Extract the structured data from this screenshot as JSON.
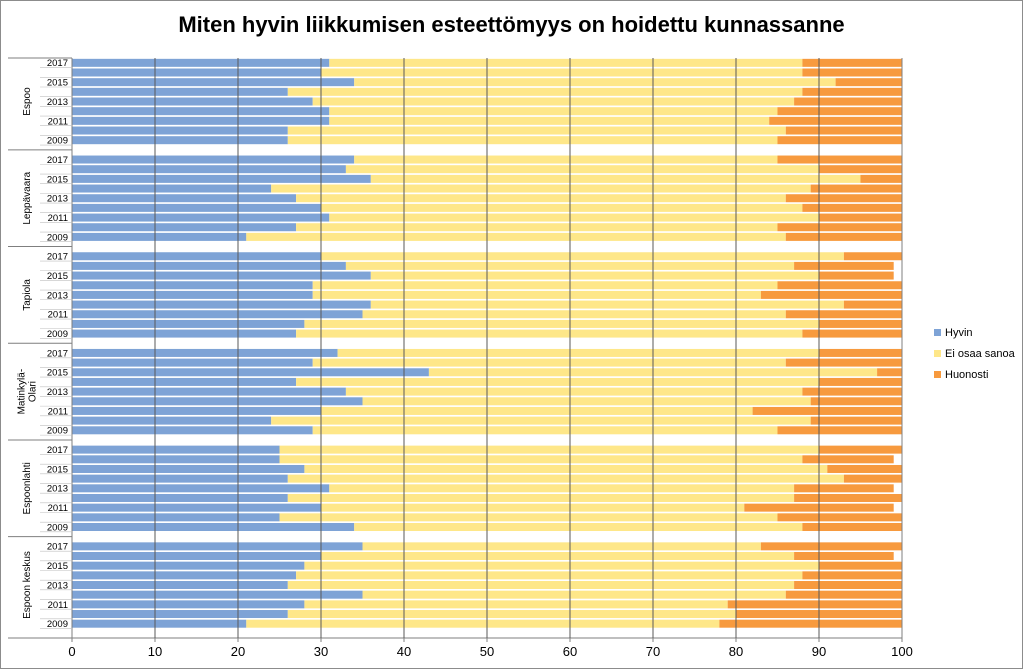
{
  "chart_data": {
    "type": "bar",
    "orientation": "horizontal",
    "stacked": true,
    "title": "Miten hyvin liikkumisen esteettömyys on hoidettu kunnassanne",
    "xlim": [
      0,
      100
    ],
    "xticks": [
      0,
      10,
      20,
      30,
      40,
      50,
      60,
      70,
      80,
      90,
      100
    ],
    "grid": "vertical",
    "legend_position": "right",
    "series_names": [
      "Hyvin",
      "Ei osaa sanoa",
      "Huonosti"
    ],
    "colors": [
      "#7ea3d6",
      "#fee789",
      "#f79a3e"
    ],
    "groups": [
      {
        "name": "Espoo",
        "name_lines": [
          "Espoo"
        ],
        "years": [
          "2017",
          "",
          "2015",
          "",
          "2013",
          "",
          "2011",
          "",
          "2009"
        ],
        "hyvin": [
          31,
          30,
          34,
          26,
          29,
          31,
          31,
          26,
          26
        ],
        "ei_osaa_sanoa": [
          57,
          58,
          58,
          62,
          58,
          54,
          53,
          60,
          59
        ],
        "huonosti": [
          12,
          12,
          8,
          12,
          13,
          15,
          16,
          14,
          15
        ]
      },
      {
        "name": "Leppävaara",
        "name_lines": [
          "Leppävaara"
        ],
        "years": [
          "2017",
          "",
          "2015",
          "",
          "2013",
          "",
          "2011",
          "",
          "2009"
        ],
        "hyvin": [
          34,
          33,
          36,
          24,
          27,
          30,
          31,
          27,
          21
        ],
        "ei_osaa_sanoa": [
          51,
          57,
          59,
          65,
          59,
          58,
          59,
          58,
          65
        ],
        "huonosti": [
          15,
          10,
          5,
          11,
          14,
          12,
          10,
          15,
          14
        ]
      },
      {
        "name": "Tapiola",
        "name_lines": [
          "Tapiola"
        ],
        "years": [
          "2017",
          "",
          "2015",
          "",
          "2013",
          "",
          "2011",
          "",
          "2009"
        ],
        "hyvin": [
          30,
          33,
          36,
          29,
          29,
          36,
          35,
          28,
          27
        ],
        "ei_osaa_sanoa": [
          63,
          54,
          54,
          56,
          54,
          57,
          51,
          62,
          61
        ],
        "huonosti": [
          7,
          12,
          9,
          15,
          17,
          7,
          14,
          10,
          12
        ]
      },
      {
        "name": "Matinkylä-Olari",
        "name_lines": [
          "Matinkylä-",
          "Olari"
        ],
        "years": [
          "2017",
          "",
          "2015",
          "",
          "2013",
          "",
          "2011",
          "",
          "2009"
        ],
        "hyvin": [
          32,
          29,
          43,
          27,
          33,
          35,
          30,
          24,
          29
        ],
        "ei_osaa_sanoa": [
          58,
          57,
          54,
          63,
          55,
          54,
          52,
          65,
          56
        ],
        "huonosti": [
          10,
          14,
          3,
          10,
          12,
          11,
          18,
          11,
          15
        ]
      },
      {
        "name": "Espoonlahti",
        "name_lines": [
          "Espoonlahti"
        ],
        "years": [
          "2017",
          "",
          "2015",
          "",
          "2013",
          "",
          "2011",
          "",
          "2009"
        ],
        "hyvin": [
          25,
          25,
          28,
          26,
          31,
          26,
          30,
          25,
          34
        ],
        "ei_osaa_sanoa": [
          65,
          63,
          63,
          67,
          56,
          61,
          51,
          60,
          54
        ],
        "huonosti": [
          10,
          11,
          9,
          7,
          12,
          13,
          18,
          15,
          12
        ]
      },
      {
        "name": "Espoon keskus",
        "name_lines": [
          "Espoon keskus"
        ],
        "years": [
          "2017",
          "",
          "2015",
          "",
          "2013",
          "",
          "2011",
          "",
          "2009"
        ],
        "hyvin": [
          35,
          30,
          28,
          27,
          26,
          35,
          28,
          26,
          21
        ],
        "ei_osaa_sanoa": [
          48,
          57,
          62,
          61,
          61,
          51,
          51,
          54,
          57
        ],
        "huonosti": [
          17,
          12,
          10,
          12,
          13,
          14,
          21,
          20,
          22
        ]
      }
    ]
  }
}
